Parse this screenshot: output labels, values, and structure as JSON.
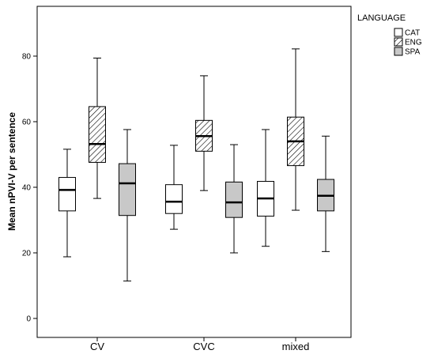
{
  "chart_data": {
    "type": "boxplot",
    "title": "",
    "xlabel": "",
    "ylabel": "Mean nPVI-V per sentence",
    "ylim": [
      -3,
      95
    ],
    "yticks": [
      0,
      20,
      40,
      60,
      80
    ],
    "categories": [
      "CV",
      "CVC",
      "mixed"
    ],
    "legend": {
      "title": "LANGUAGE",
      "position": "outside-top-right"
    },
    "series": [
      {
        "name": "CAT",
        "fill": "#ffffff",
        "pattern": "none",
        "boxes": [
          {
            "min": 18.8,
            "q1": 32.8,
            "median": 39.2,
            "q3": 43.0,
            "max": 51.6
          },
          {
            "min": 27.2,
            "q1": 32.0,
            "median": 35.6,
            "q3": 40.8,
            "max": 52.8
          },
          {
            "min": 22.0,
            "q1": 31.2,
            "median": 36.6,
            "q3": 41.8,
            "max": 57.6
          }
        ]
      },
      {
        "name": "ENG",
        "fill": "#ffffff",
        "pattern": "diagonal-hatch",
        "boxes": [
          {
            "min": 36.6,
            "q1": 47.6,
            "median": 53.2,
            "q3": 64.6,
            "max": 79.4
          },
          {
            "min": 39.0,
            "q1": 51.0,
            "median": 55.6,
            "q3": 60.4,
            "max": 74.0
          },
          {
            "min": 33.0,
            "q1": 46.6,
            "median": 54.0,
            "q3": 61.4,
            "max": 82.2
          }
        ]
      },
      {
        "name": "SPA",
        "fill": "#c8c8c8",
        "pattern": "none",
        "boxes": [
          {
            "min": 11.4,
            "q1": 31.4,
            "median": 41.2,
            "q3": 47.2,
            "max": 57.6
          },
          {
            "min": 20.0,
            "q1": 30.8,
            "median": 35.4,
            "q3": 41.6,
            "max": 53.0
          },
          {
            "min": 20.4,
            "q1": 32.8,
            "median": 37.4,
            "q3": 42.4,
            "max": 55.6
          }
        ]
      }
    ]
  }
}
